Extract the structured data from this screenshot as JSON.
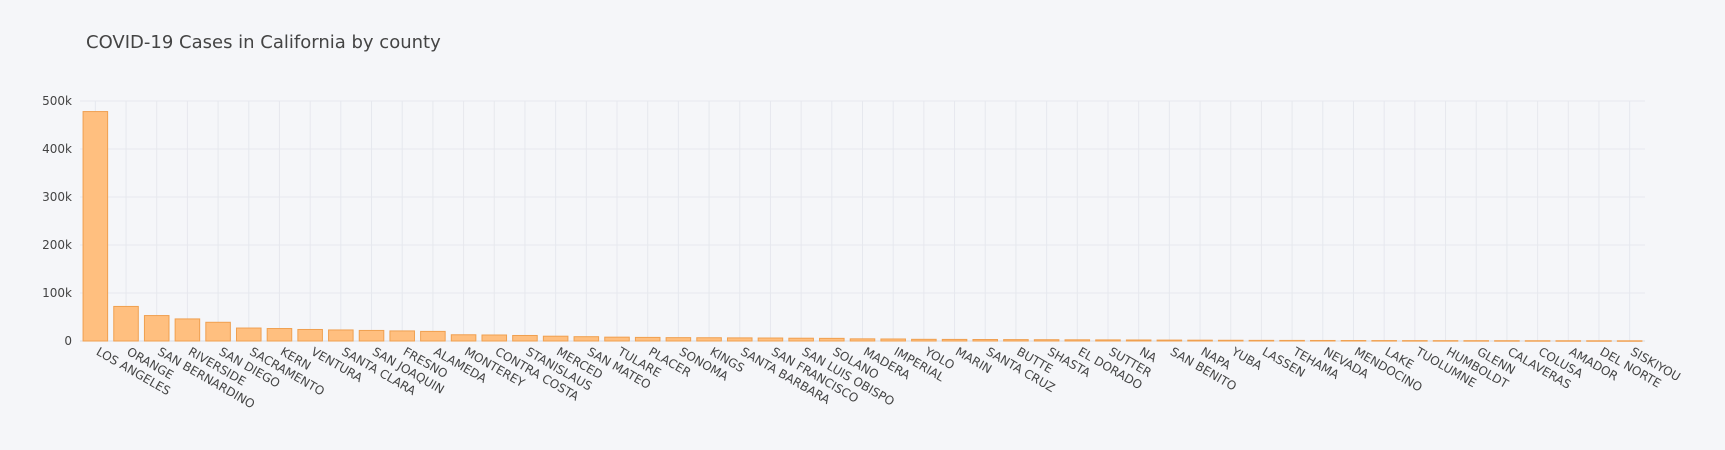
{
  "chart_data": {
    "type": "bar",
    "title": "COVID-19 Cases in California by county",
    "xlabel": "",
    "ylabel": "",
    "ylim": [
      0,
      500000
    ],
    "yticks": [
      0,
      100000,
      200000,
      300000,
      400000,
      500000
    ],
    "ytick_labels": [
      "0",
      "100k",
      "200k",
      "300k",
      "400k",
      "500k"
    ],
    "grid": true,
    "bar_color": "#ffbf7f",
    "bar_edge_color": "#f0a050",
    "categories": [
      "LOS ANGELES",
      "ORANGE",
      "SAN BERNARDINO",
      "RIVERSIDE",
      "SAN DIEGO",
      "SACRAMENTO",
      "KERN",
      "VENTURA",
      "SANTA CLARA",
      "SAN JOAQUIN",
      "FRESNO",
      "ALAMEDA",
      "MONTEREY",
      "CONTRA COSTA",
      "STANISLAUS",
      "MERCED",
      "SAN MATEO",
      "TULARE",
      "PLACER",
      "SONOMA",
      "KINGS",
      "SANTA BARBARA",
      "SAN FRANCISCO",
      "SAN LUIS OBISPO",
      "SOLANO",
      "MADERA",
      "IMPERIAL",
      "YOLO",
      "MARIN",
      "SANTA CRUZ",
      "BUTTE",
      "SHASTA",
      "EL DORADO",
      "SUTTER",
      "NA",
      "SAN BENITO",
      "NAPA",
      "YUBA",
      "LASSEN",
      "TEHAMA",
      "NEVADA",
      "MENDOCINO",
      "LAKE",
      "TUOLUMNE",
      "HUMBOLDT",
      "GLENN",
      "CALAVERAS",
      "COLUSA",
      "AMADOR",
      "DEL NORTE",
      "SISKIYOU"
    ],
    "values": [
      478000,
      72000,
      53000,
      46000,
      39000,
      27000,
      26000,
      24000,
      23000,
      22000,
      21000,
      20000,
      13000,
      12500,
      11500,
      10000,
      9000,
      8000,
      7500,
      7000,
      6800,
      6500,
      6200,
      5800,
      5500,
      4500,
      4200,
      3500,
      3300,
      3100,
      2900,
      2700,
      2500,
      2300,
      2100,
      1900,
      1700,
      1500,
      1300,
      1200,
      1100,
      1000,
      900,
      800,
      750,
      700,
      650,
      600,
      550,
      500,
      450
    ]
  }
}
